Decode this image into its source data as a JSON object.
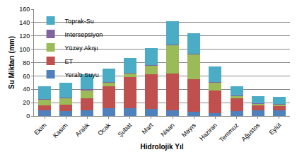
{
  "chart_data": {
    "type": "bar",
    "stacked": true,
    "x_label": "Hidrolojik Yıl",
    "y_label": "Su Miktarı (mm)",
    "categories": [
      "Ekim",
      "Kasım",
      "Aralık",
      "Ocak",
      "Şubat",
      "Mart",
      "Nisan",
      "Mayıs",
      "Haziran",
      "Temmuz",
      "Ağustos",
      "Eylül"
    ],
    "series": [
      {
        "name": "Yeraltı Suyu",
        "color": "#4f81bd",
        "values": [
          8,
          7,
          9,
          12,
          12,
          11,
          9,
          6,
          4,
          7,
          8,
          9
        ]
      },
      {
        "name": "ET",
        "color": "#c0504d",
        "values": [
          8,
          10,
          17,
          32,
          46,
          51,
          55,
          49,
          34,
          19,
          8,
          6
        ]
      },
      {
        "name": "Yüzey Akışı",
        "color": "#9bbb59",
        "values": [
          8,
          10,
          12,
          6,
          6,
          13,
          42,
          37,
          12,
          4,
          2,
          2
        ]
      },
      {
        "name": "Intersepsiyon",
        "color": "#8064a2",
        "values": [
          1,
          1,
          2,
          1,
          1,
          1,
          1,
          1,
          1,
          1,
          1,
          1
        ]
      },
      {
        "name": "Toprak-Su",
        "color": "#4bacc6",
        "values": [
          19,
          22,
          22,
          20,
          22,
          26,
          35,
          31,
          23,
          14,
          11,
          11
        ]
      }
    ],
    "ylim": [
      0,
      160
    ],
    "yticks": [
      0,
      20,
      40,
      60,
      80,
      100,
      120,
      140,
      160
    ],
    "grid": true,
    "legend": "upper left"
  }
}
